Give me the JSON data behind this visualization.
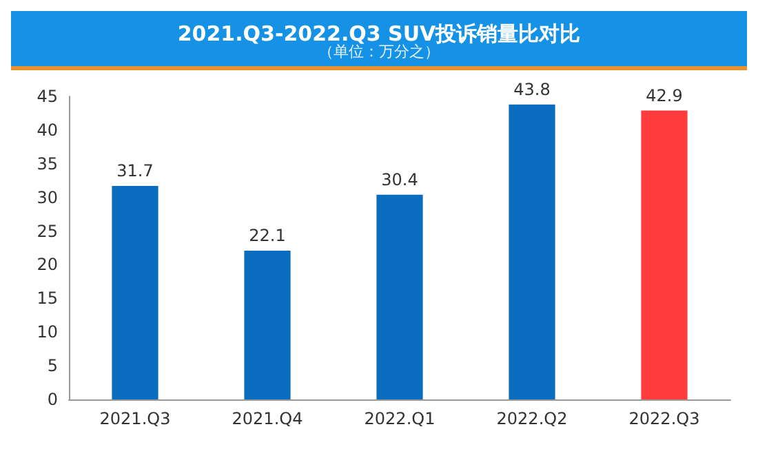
{
  "chart_data": {
    "type": "bar",
    "title": "2021.Q3-2022.Q3 SUV投诉销量比对比",
    "subtitle": "（单位：万分之）",
    "categories": [
      "2021.Q3",
      "2021.Q4",
      "2022.Q1",
      "2022.Q2",
      "2022.Q3"
    ],
    "values": [
      31.7,
      22.1,
      30.4,
      43.8,
      42.9
    ],
    "colors": [
      "#0a6cbf",
      "#0a6cbf",
      "#0a6cbf",
      "#0a6cbf",
      "#ff3b3b"
    ],
    "ylim": [
      0,
      45
    ],
    "yticks": [
      0,
      5,
      10,
      15,
      20,
      25,
      30,
      35,
      40,
      45
    ],
    "grid": false,
    "data_labels": true
  }
}
